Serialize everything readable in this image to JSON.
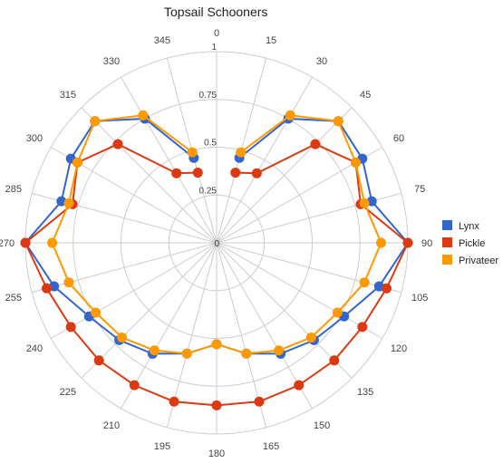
{
  "chart_data": {
    "type": "line",
    "subtype": "polar",
    "title": "Topsail Schooners",
    "angle_ticks": [
      "0",
      "15",
      "30",
      "45",
      "60",
      "75",
      "90",
      "105",
      "120",
      "135",
      "150",
      "165",
      "180",
      "195",
      "210",
      "225",
      "240",
      "255",
      "270",
      "285",
      "300",
      "315",
      "330",
      "345"
    ],
    "angles": [
      0,
      15,
      30,
      45,
      60,
      75,
      90,
      105,
      120,
      135,
      150,
      165,
      180,
      195,
      210,
      225,
      240,
      255,
      270,
      285,
      300,
      315,
      330,
      345
    ],
    "r_ticks": [
      "0",
      "0.25",
      "0.5",
      "0.75",
      "1"
    ],
    "rlim": [
      0,
      1
    ],
    "grid": true,
    "legend_position": "right",
    "series": [
      {
        "name": "Lynx",
        "color": "#3366cc",
        "angles": [
          15,
          30,
          45,
          60,
          75,
          90,
          105,
          120,
          135,
          150,
          165,
          180,
          195,
          210,
          225,
          240,
          255,
          270,
          285,
          300,
          315,
          330,
          345
        ],
        "values": [
          0.46,
          0.75,
          0.9,
          0.88,
          0.84,
          1.0,
          0.88,
          0.77,
          0.72,
          0.67,
          0.6,
          0.53,
          0.6,
          0.67,
          0.72,
          0.77,
          0.88,
          1.0,
          0.84,
          0.88,
          0.9,
          0.75,
          0.46
        ]
      },
      {
        "name": "Pickle",
        "color": "#dc3912",
        "angles": [
          15,
          30,
          45,
          60,
          75,
          90,
          105,
          120,
          135,
          150,
          165,
          180,
          195,
          210,
          225,
          240,
          255,
          270,
          285,
          300,
          315,
          330,
          345
        ],
        "values": [
          0.38,
          0.42,
          0.73,
          0.84,
          0.78,
          1.0,
          0.92,
          0.88,
          0.87,
          0.86,
          0.86,
          0.85,
          0.86,
          0.86,
          0.87,
          0.88,
          0.92,
          1.0,
          0.78,
          0.84,
          0.73,
          0.42,
          0.38
        ]
      },
      {
        "name": "Privateer",
        "color": "#ff9900",
        "angles": [
          15,
          30,
          45,
          60,
          75,
          90,
          105,
          120,
          135,
          150,
          165,
          180,
          195,
          210,
          225,
          240,
          255,
          270,
          285,
          300,
          315,
          330,
          345
        ],
        "values": [
          0.49,
          0.77,
          0.9,
          0.84,
          0.8,
          0.86,
          0.8,
          0.73,
          0.7,
          0.65,
          0.6,
          0.53,
          0.6,
          0.65,
          0.7,
          0.73,
          0.8,
          0.86,
          0.8,
          0.84,
          0.9,
          0.77,
          0.49
        ]
      }
    ]
  }
}
